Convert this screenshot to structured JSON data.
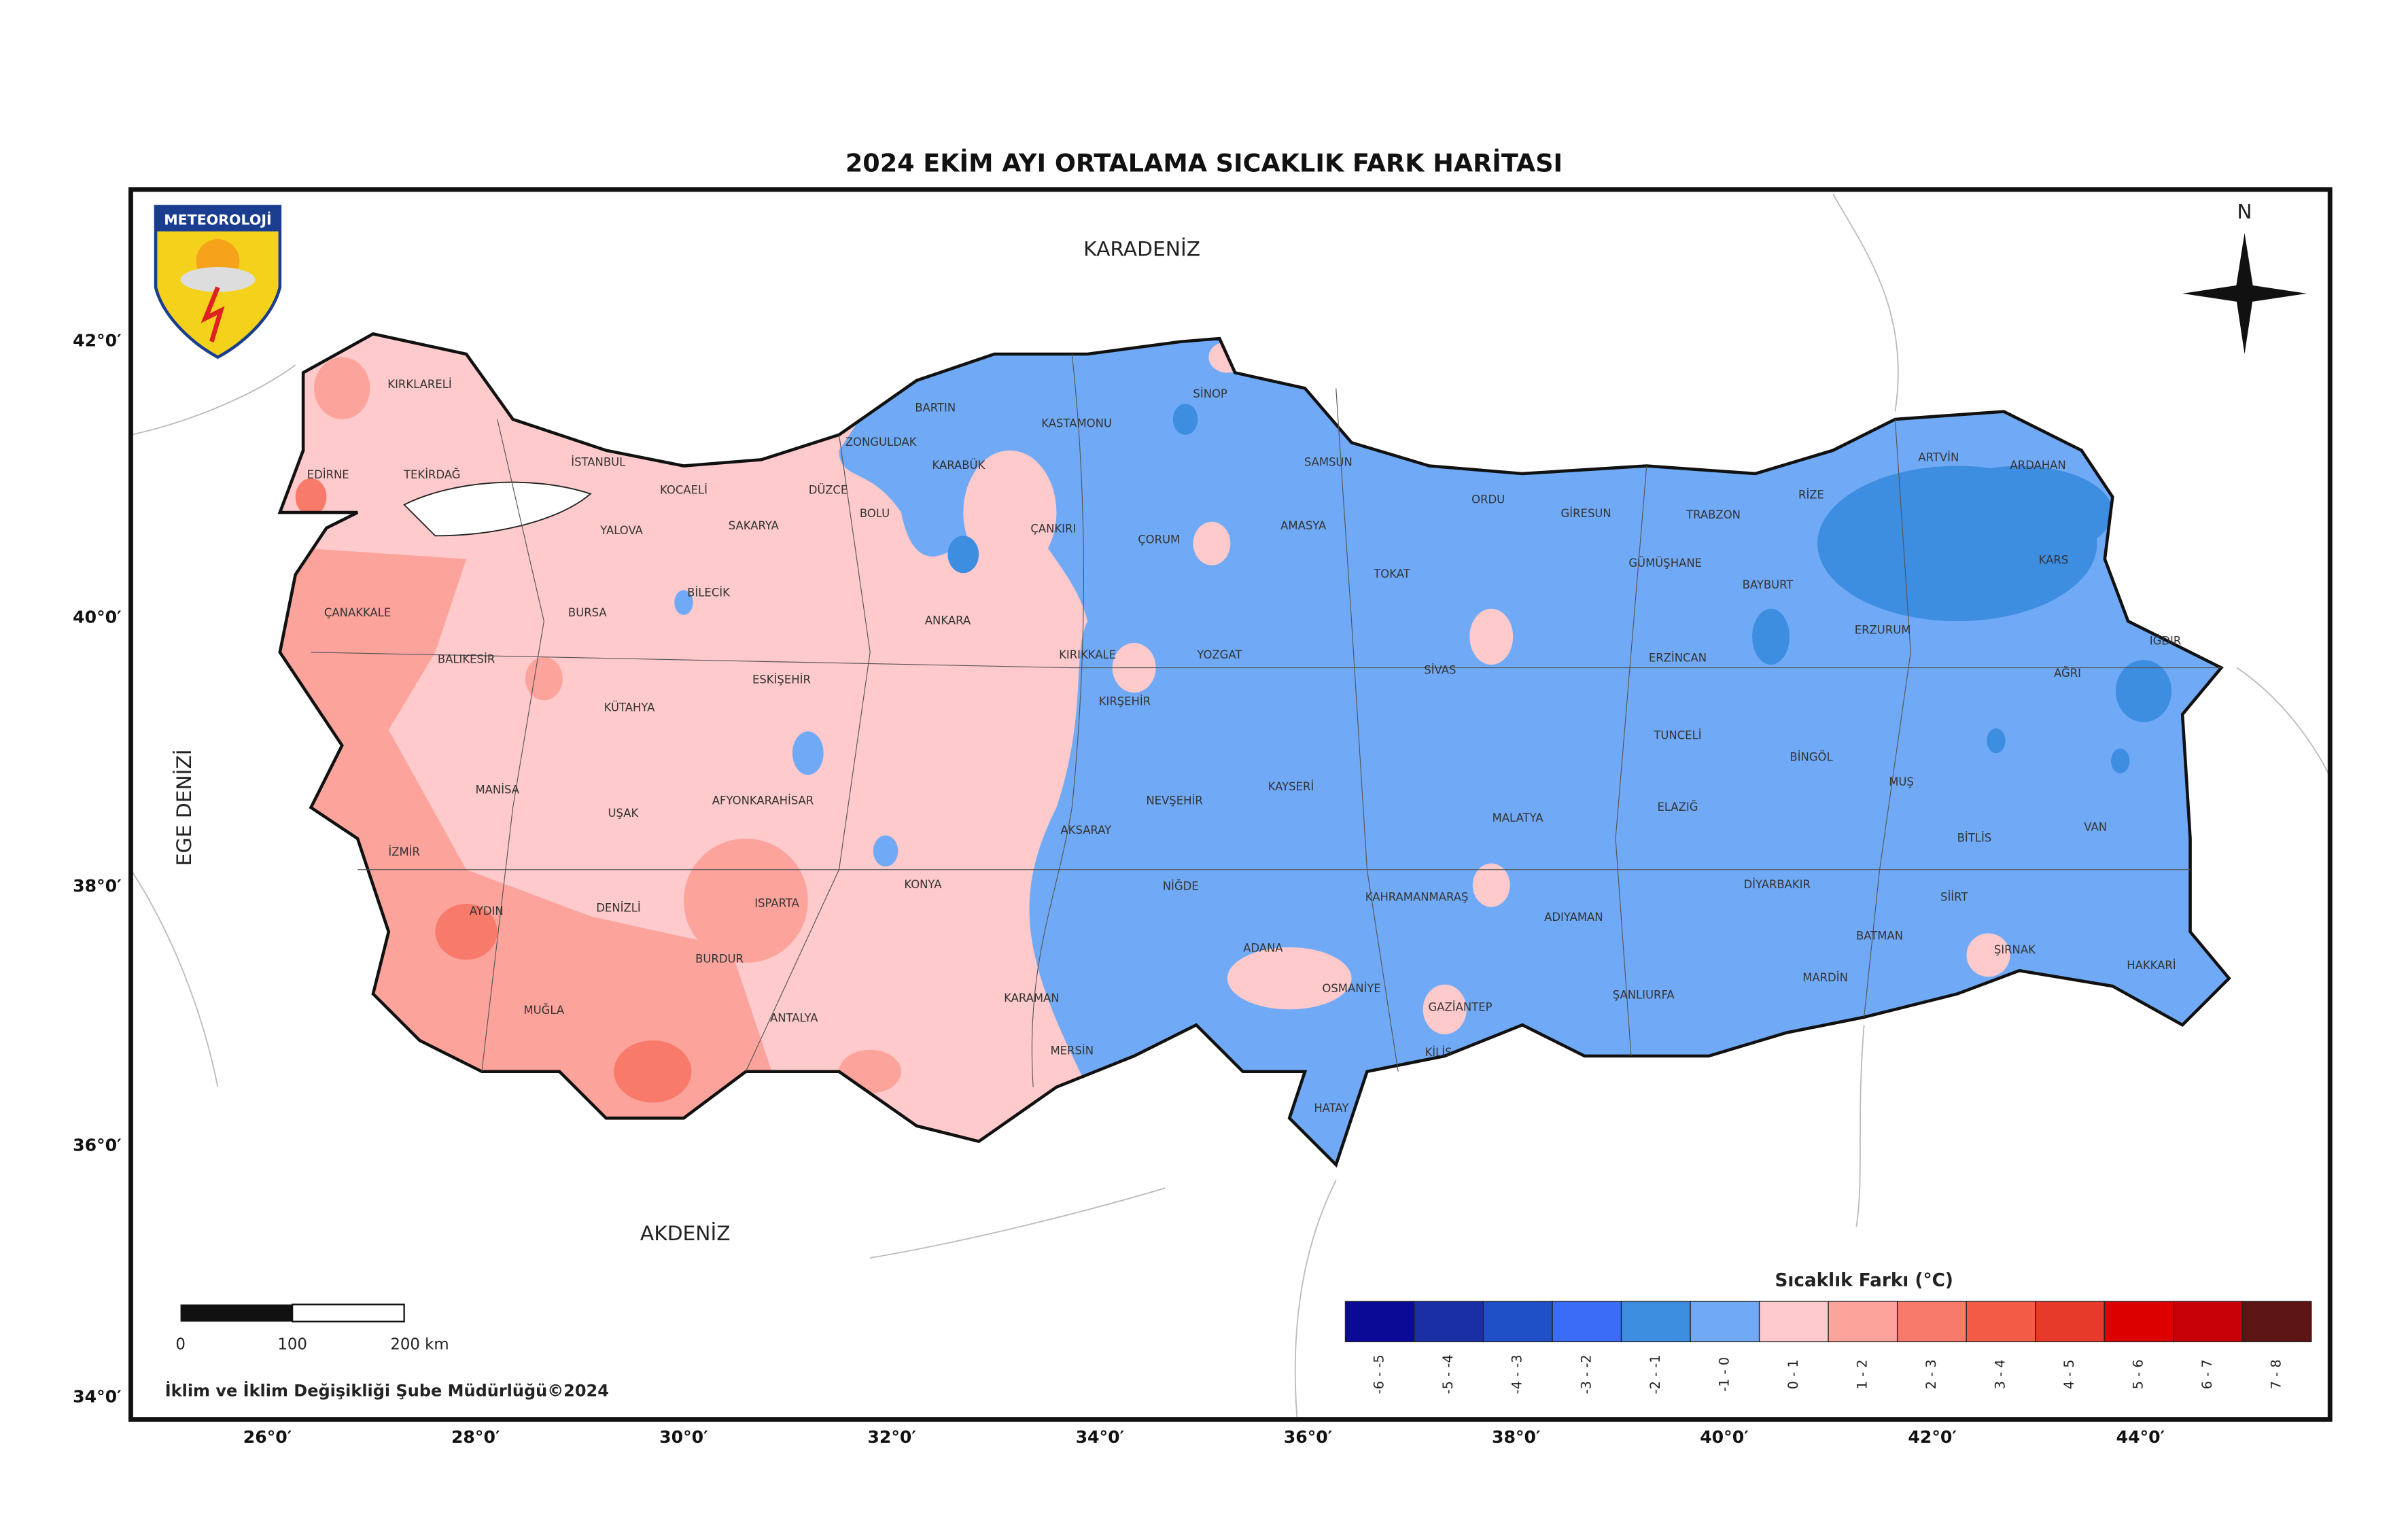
{
  "title": "2024 EKİM AYI ORTALAMA SICAKLIK FARK HARİTASI",
  "seas": [
    "KARADENİZ",
    "AKDENİZ",
    "EGE DENİZİ"
  ],
  "logo": "METEOROLOJİ",
  "north": "N",
  "latitude_labels": [
    "42°0′",
    "40°0′",
    "38°0′",
    "36°0′",
    "34°0′"
  ],
  "longitude_labels": [
    "26°0′",
    "28°0′",
    "30°0′",
    "32°0′",
    "34°0′",
    "36°0′",
    "38°0′",
    "40°0′",
    "42°0′",
    "44°0′"
  ],
  "provinces": [
    "KIRKLARELİ",
    "EDİRNE",
    "TEKİRDAĞ",
    "İSTANBUL",
    "KOCAELİ",
    "YALOVA",
    "SAKARYA",
    "DÜZCE",
    "ZONGULDAK",
    "BARTIN",
    "KARABÜK",
    "BOLU",
    "KASTAMONU",
    "SİNOP",
    "SAMSUN",
    "ÇANKIRI",
    "ÇORUM",
    "AMASYA",
    "TOKAT",
    "ORDU",
    "GİRESUN",
    "TRABZON",
    "RİZE",
    "ARTVİN",
    "ARDAHAN",
    "KARS",
    "GÜMÜŞHANE",
    "BAYBURT",
    "ERZURUM",
    "IĞDIR",
    "AĞRI",
    "ERZİNCAN",
    "SİVAS",
    "YOZGAT",
    "KIRIKKALE",
    "KIRŞEHİR",
    "ANKARA",
    "BİLECİK",
    "BURSA",
    "ÇANAKKALE",
    "BALIKESİR",
    "ESKİŞEHİR",
    "KÜTAHYA",
    "MANİSA",
    "UŞAK",
    "AFYONKARAHİSAR",
    "İZMİR",
    "AYDIN",
    "DENİZLİ",
    "ISPARTA",
    "BURDUR",
    "MUĞLA",
    "ANTALYA",
    "KONYA",
    "AKSARAY",
    "NEVŞEHİR",
    "KAYSERİ",
    "NİĞDE",
    "KARAMAN",
    "MERSİN",
    "ADANA",
    "OSMANİYE",
    "HATAY",
    "KAHRAMANMARAŞ",
    "GAZİANTEP",
    "KİLİS",
    "ADIYAMAN",
    "MALATYA",
    "TUNCELİ",
    "ELAZIĞ",
    "BİNGÖL",
    "MUŞ",
    "BİTLİS",
    "VAN",
    "DİYARBAKIR",
    "ŞANLIURFA",
    "MARDİN",
    "BATMAN",
    "SİİRT",
    "ŞIRNAK",
    "HAKKARİ"
  ],
  "legend": {
    "title": "Sıcaklık Farkı (°C)",
    "classes": [
      {
        "label": "-6 - -5",
        "color": "#0a0a96"
      },
      {
        "label": "-5 - -4",
        "color": "#1a2ea6"
      },
      {
        "label": "-4 - -3",
        "color": "#2050c8"
      },
      {
        "label": "-3 - -2",
        "color": "#3a6cf5"
      },
      {
        "label": "-2 - -1",
        "color": "#3d8de0"
      },
      {
        "label": "-1 - 0",
        "color": "#70aaf6"
      },
      {
        "label": "0 - 1",
        "color": "#fecacb"
      },
      {
        "label": "1 - 2",
        "color": "#fca39c"
      },
      {
        "label": "2 - 3",
        "color": "#f77a6a"
      },
      {
        "label": "3 - 4",
        "color": "#f25c47"
      },
      {
        "label": "4 - 5",
        "color": "#e83a2a"
      },
      {
        "label": "5 - 6",
        "color": "#dc0000"
      },
      {
        "label": "6 - 7",
        "color": "#c80008"
      },
      {
        "label": "7 - 8",
        "color": "#5c1414"
      }
    ]
  },
  "scale_bar": {
    "labels": [
      "0",
      "100",
      "200 km"
    ]
  },
  "credit": "İklim ve İklim Değişikliği Şube Müdürlüğü©2024"
}
